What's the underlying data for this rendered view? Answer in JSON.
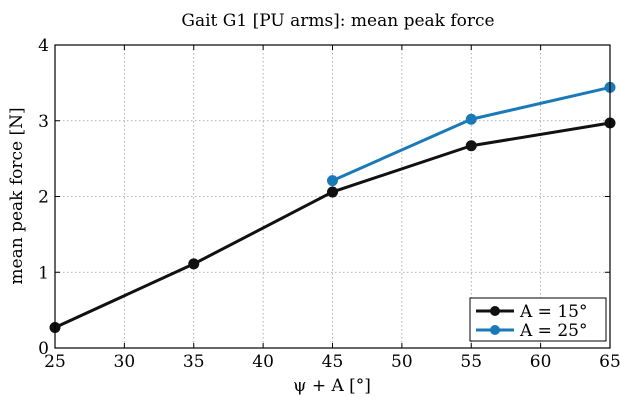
{
  "chart_data": {
    "type": "line",
    "title": "Gait G1 [PU arms]: mean peak force",
    "xlabel": "ψ + A [°]",
    "ylabel": "mean peak force [N]",
    "xlim": [
      25,
      65
    ],
    "ylim": [
      0,
      4
    ],
    "xticks": [
      "25",
      "30",
      "35",
      "40",
      "45",
      "50",
      "55",
      "60",
      "65"
    ],
    "yticks": [
      "0",
      "1",
      "2",
      "3",
      "4"
    ],
    "grid": true,
    "legend_position": "bottom-right",
    "series": [
      {
        "name": "A = 15°",
        "color": "#111111",
        "x": [
          25,
          35,
          45,
          55,
          65
        ],
        "y": [
          0.27,
          1.11,
          2.06,
          2.67,
          2.97
        ]
      },
      {
        "name": "A = 25°",
        "color": "#1a7ab8",
        "x": [
          45,
          55,
          65
        ],
        "y": [
          2.21,
          3.02,
          3.44
        ]
      }
    ]
  }
}
